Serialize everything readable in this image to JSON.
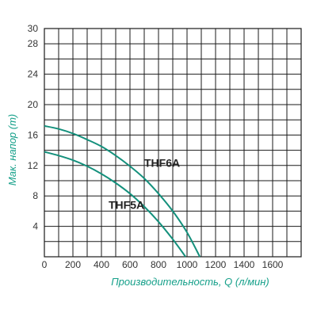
{
  "chart_data": {
    "type": "line",
    "title": "",
    "xlabel": "Производительность, Q (л/мин)",
    "ylabel": "Мак. напор (m)",
    "xlim": [
      0,
      1800
    ],
    "ylim": [
      0,
      30
    ],
    "x_ticks": [
      "0",
      "200",
      "400",
      "600",
      "800",
      "1000",
      "1200",
      "1400",
      "1600"
    ],
    "y_ticks": [
      "4",
      "8",
      "12",
      "16",
      "20",
      "24",
      "28",
      "30"
    ],
    "y_tick_values": [
      4,
      8,
      12,
      16,
      20,
      24,
      28,
      30
    ],
    "x_tick_values": [
      0,
      200,
      400,
      600,
      800,
      1000,
      1200,
      1400,
      1600
    ],
    "grid_x_step": 100,
    "grid_y_step": 2,
    "grid": true,
    "series": [
      {
        "name": "THF6A",
        "x": [
          0,
          100,
          200,
          300,
          400,
          500,
          600,
          700,
          800,
          900,
          1000,
          1090
        ],
        "y": [
          17.2,
          16.8,
          16.2,
          15.4,
          14.5,
          13.3,
          11.9,
          10.3,
          8.3,
          6.0,
          3.2,
          0
        ]
      },
      {
        "name": "THF5A",
        "x": [
          0,
          100,
          200,
          300,
          400,
          500,
          600,
          700,
          800,
          900,
          990
        ],
        "y": [
          13.8,
          13.3,
          12.7,
          11.9,
          10.9,
          9.7,
          8.3,
          6.6,
          4.6,
          2.3,
          0
        ]
      }
    ],
    "colors": {
      "curve": "#14907c",
      "axis_title": "#16a08a",
      "grid": "#1a1a1a"
    }
  }
}
